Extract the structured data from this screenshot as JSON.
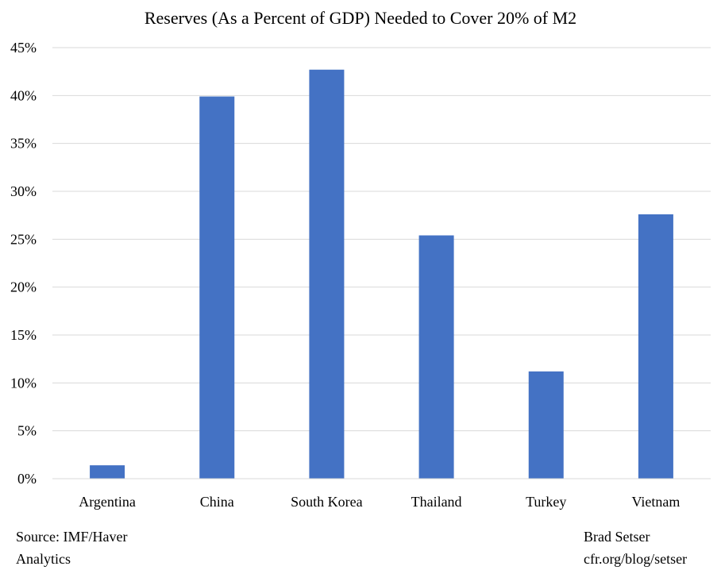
{
  "chart_data": {
    "type": "bar",
    "title": "Reserves (As a Percent of GDP) Needed to Cover 20% of M2",
    "xlabel": "",
    "ylabel": "",
    "categories": [
      "Argentina",
      "China",
      "South Korea",
      "Thailand",
      "Turkey",
      "Vietnam"
    ],
    "values": [
      1.4,
      39.9,
      42.7,
      25.4,
      11.2,
      27.6
    ],
    "ylim": [
      0,
      45
    ],
    "yticks": [
      0,
      5,
      10,
      15,
      20,
      25,
      30,
      35,
      40,
      45
    ],
    "ytick_labels": [
      "0%",
      "5%",
      "10%",
      "15%",
      "20%",
      "25%",
      "30%",
      "35%",
      "40%",
      "45%"
    ],
    "grid": true,
    "legend": "none",
    "bar_color": "#4472C4"
  },
  "notes": {
    "source": "Source: IMF/Haver\nAnalytics",
    "credit": "Brad Setser\ncfr.org/blog/setser"
  }
}
